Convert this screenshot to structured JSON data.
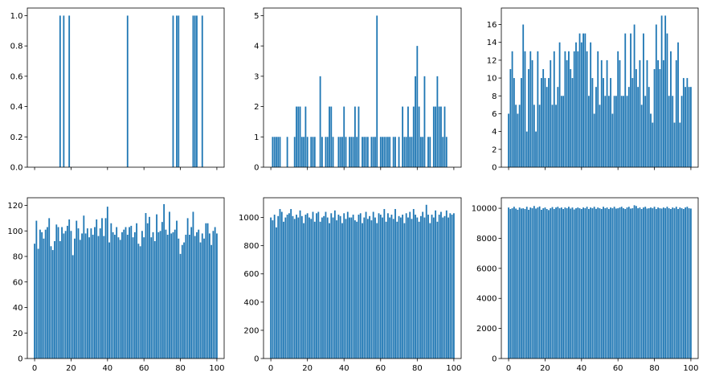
{
  "chart_data": [
    {
      "type": "bar",
      "color": "#1f77b4",
      "grid": false,
      "xlim": [
        -4,
        104
      ],
      "ylim": [
        0,
        1.05
      ],
      "x_ticks": [
        0,
        20,
        40,
        60,
        80,
        100
      ],
      "x_tick_labels": [],
      "y_ticks": [
        0,
        0.2,
        0.4,
        0.6,
        0.8,
        1.0
      ],
      "y_tick_labels": [
        "0.0",
        "0.2",
        "0.4",
        "0.6",
        "0.8",
        "1.0"
      ],
      "x": [
        14,
        16,
        19,
        51,
        76,
        78,
        79,
        87,
        88,
        89,
        92
      ],
      "values": [
        1,
        1,
        1,
        1,
        1,
        1,
        1,
        1,
        1,
        1,
        1
      ]
    },
    {
      "type": "bar",
      "color": "#1f77b4",
      "grid": false,
      "xlim": [
        -4,
        104
      ],
      "ylim": [
        0,
        5.25
      ],
      "x_ticks": [
        0,
        20,
        40,
        60,
        80,
        100
      ],
      "x_tick_labels": [],
      "y_ticks": [
        0,
        1,
        2,
        3,
        4,
        5
      ],
      "y_tick_labels": [
        "0",
        "1",
        "2",
        "3",
        "4",
        "5"
      ],
      "x": [
        1,
        2,
        3,
        4,
        5,
        9,
        13,
        14,
        15,
        16,
        17,
        18,
        19,
        20,
        22,
        23,
        24,
        27,
        28,
        30,
        31,
        32,
        33,
        34,
        37,
        38,
        39,
        40,
        41,
        43,
        44,
        45,
        46,
        47,
        48,
        50,
        51,
        52,
        53,
        55,
        56,
        57,
        58,
        60,
        61,
        62,
        63,
        64,
        65,
        67,
        68,
        70,
        72,
        73,
        74,
        75,
        76,
        77,
        78,
        79,
        80,
        81,
        82,
        83,
        84,
        86,
        87,
        89,
        90,
        91,
        92,
        93,
        94,
        95,
        96
      ],
      "values": [
        1,
        1,
        1,
        1,
        1,
        1,
        1,
        2,
        2,
        2,
        1,
        1,
        2,
        1,
        1,
        1,
        1,
        3,
        1,
        1,
        1,
        2,
        2,
        1,
        1,
        1,
        1,
        2,
        1,
        1,
        1,
        1,
        2,
        1,
        2,
        1,
        1,
        1,
        1,
        1,
        1,
        1,
        5,
        1,
        1,
        1,
        1,
        1,
        1,
        1,
        1,
        1,
        2,
        1,
        1,
        2,
        1,
        1,
        2,
        3,
        4,
        2,
        1,
        1,
        3,
        1,
        1,
        2,
        2,
        3,
        2,
        2,
        1,
        2,
        1
      ]
    },
    {
      "type": "bar",
      "color": "#1f77b4",
      "grid": false,
      "xlim": [
        -4,
        104
      ],
      "ylim": [
        0,
        17.85
      ],
      "x_ticks": [
        0,
        20,
        40,
        60,
        80,
        100
      ],
      "x_tick_labels": [],
      "y_ticks": [
        0,
        2,
        4,
        6,
        8,
        10,
        12,
        14,
        16
      ],
      "y_tick_labels": [
        "0",
        "2",
        "4",
        "6",
        "8",
        "10",
        "12",
        "14",
        "16"
      ],
      "x": [
        0,
        1,
        2,
        3,
        4,
        5,
        6,
        7,
        8,
        9,
        10,
        11,
        12,
        13,
        14,
        15,
        16,
        17,
        18,
        19,
        20,
        21,
        22,
        23,
        24,
        25,
        26,
        27,
        28,
        29,
        30,
        31,
        32,
        33,
        34,
        35,
        36,
        37,
        38,
        39,
        40,
        41,
        42,
        43,
        44,
        45,
        46,
        47,
        48,
        49,
        50,
        51,
        52,
        53,
        54,
        55,
        56,
        57,
        58,
        59,
        60,
        61,
        62,
        63,
        64,
        65,
        66,
        67,
        68,
        69,
        70,
        71,
        72,
        73,
        74,
        75,
        76,
        77,
        78,
        79,
        80,
        81,
        82,
        83,
        84,
        85,
        86,
        87,
        88,
        89,
        90,
        91,
        92,
        93,
        94,
        95,
        96,
        97,
        98,
        99,
        100
      ],
      "values": [
        6,
        11,
        13,
        10,
        7,
        6,
        7,
        10,
        16,
        13,
        4,
        11,
        13,
        12,
        7,
        4,
        13,
        7,
        10,
        11,
        10,
        9,
        10,
        12,
        7,
        13,
        7,
        9,
        14,
        8,
        8,
        13,
        12,
        13,
        11,
        10,
        13,
        14,
        13,
        15,
        14,
        15,
        15,
        13,
        8,
        14,
        10,
        6,
        9,
        13,
        7,
        12,
        10,
        8,
        12,
        8,
        10,
        6,
        8,
        8,
        13,
        12,
        8,
        8,
        15,
        8,
        9,
        15,
        10,
        16,
        11,
        9,
        12,
        7,
        15,
        8,
        12,
        9,
        6,
        5,
        11,
        16,
        12,
        11,
        17,
        12,
        17,
        15,
        8,
        13,
        8,
        5,
        12,
        14,
        5,
        8,
        10,
        9,
        10,
        9,
        9
      ]
    },
    {
      "type": "bar",
      "color": "#1f77b4",
      "grid": false,
      "xlim": [
        -4,
        104
      ],
      "ylim": [
        0,
        126
      ],
      "x_ticks": [
        0,
        20,
        40,
        60,
        80,
        100
      ],
      "x_tick_labels": [
        "0",
        "20",
        "40",
        "60",
        "80",
        "100"
      ],
      "y_ticks": [
        0,
        20,
        40,
        60,
        80,
        100,
        120
      ],
      "y_tick_labels": [
        "0",
        "20",
        "40",
        "60",
        "80",
        "100",
        "120"
      ],
      "x": [
        0,
        1,
        2,
        3,
        4,
        5,
        6,
        7,
        8,
        9,
        10,
        11,
        12,
        13,
        14,
        15,
        16,
        17,
        18,
        19,
        20,
        21,
        22,
        23,
        24,
        25,
        26,
        27,
        28,
        29,
        30,
        31,
        32,
        33,
        34,
        35,
        36,
        37,
        38,
        39,
        40,
        41,
        42,
        43,
        44,
        45,
        46,
        47,
        48,
        49,
        50,
        51,
        52,
        53,
        54,
        55,
        56,
        57,
        58,
        59,
        60,
        61,
        62,
        63,
        64,
        65,
        66,
        67,
        68,
        69,
        70,
        71,
        72,
        73,
        74,
        75,
        76,
        77,
        78,
        79,
        80,
        81,
        82,
        83,
        84,
        85,
        86,
        87,
        88,
        89,
        90,
        91,
        92,
        93,
        94,
        95,
        96,
        97,
        98,
        99,
        100
      ],
      "values": [
        90,
        108,
        86,
        101,
        99,
        94,
        101,
        103,
        110,
        88,
        85,
        92,
        105,
        103,
        92,
        103,
        98,
        100,
        104,
        109,
        100,
        81,
        94,
        108,
        102,
        93,
        98,
        112,
        98,
        102,
        95,
        102,
        97,
        103,
        109,
        96,
        102,
        110,
        96,
        110,
        119,
        91,
        106,
        99,
        97,
        103,
        95,
        93,
        99,
        101,
        103,
        97,
        103,
        104,
        95,
        99,
        106,
        90,
        88,
        100,
        95,
        114,
        106,
        111,
        95,
        99,
        92,
        113,
        99,
        100,
        107,
        121,
        101,
        97,
        115,
        98,
        99,
        101,
        108,
        94,
        82,
        89,
        91,
        97,
        110,
        97,
        103,
        115,
        96,
        99,
        101,
        91,
        98,
        94,
        106,
        106,
        98,
        89,
        100,
        103,
        98
      ]
    },
    {
      "type": "bar",
      "color": "#1f77b4",
      "grid": false,
      "xlim": [
        -4,
        104
      ],
      "ylim": [
        0,
        1140
      ],
      "x_ticks": [
        0,
        20,
        40,
        60,
        80,
        100
      ],
      "x_tick_labels": [
        "0",
        "20",
        "40",
        "60",
        "80",
        "100"
      ],
      "y_ticks": [
        0,
        200,
        400,
        600,
        800,
        1000
      ],
      "y_tick_labels": [
        "0",
        "200",
        "400",
        "600",
        "800",
        "1000"
      ],
      "x": [
        0,
        1,
        2,
        3,
        4,
        5,
        6,
        7,
        8,
        9,
        10,
        11,
        12,
        13,
        14,
        15,
        16,
        17,
        18,
        19,
        20,
        21,
        22,
        23,
        24,
        25,
        26,
        27,
        28,
        29,
        30,
        31,
        32,
        33,
        34,
        35,
        36,
        37,
        38,
        39,
        40,
        41,
        42,
        43,
        44,
        45,
        46,
        47,
        48,
        49,
        50,
        51,
        52,
        53,
        54,
        55,
        56,
        57,
        58,
        59,
        60,
        61,
        62,
        63,
        64,
        65,
        66,
        67,
        68,
        69,
        70,
        71,
        72,
        73,
        74,
        75,
        76,
        77,
        78,
        79,
        80,
        81,
        82,
        83,
        84,
        85,
        86,
        87,
        88,
        89,
        90,
        91,
        92,
        93,
        94,
        95,
        96,
        97,
        98,
        99,
        100
      ],
      "values": [
        1000,
        980,
        1020,
        930,
        1010,
        1060,
        1040,
        970,
        1000,
        1020,
        1030,
        1060,
        1010,
        990,
        1020,
        1000,
        1050,
        1010,
        960,
        1020,
        1030,
        1000,
        990,
        1040,
        970,
        1030,
        1040,
        970,
        1000,
        1010,
        1040,
        1000,
        960,
        1030,
        1000,
        1050,
        980,
        1020,
        1010,
        960,
        1030,
        990,
        1040,
        1000,
        1000,
        1020,
        980,
        970,
        1020,
        1030,
        960,
        1000,
        1040,
        990,
        1010,
        980,
        1040,
        1000,
        960,
        1030,
        1020,
        1000,
        1060,
        970,
        1030,
        1000,
        1020,
        990,
        1060,
        970,
        1010,
        1000,
        1020,
        960,
        1030,
        1000,
        1040,
        990,
        1060,
        1020,
        1000,
        970,
        1010,
        1040,
        1000,
        1090,
        1020,
        960,
        1020,
        1000,
        1050,
        970,
        1020,
        1040,
        1000,
        1010,
        1050,
        1000,
        1030,
        1020,
        1030
      ]
    },
    {
      "type": "bar",
      "color": "#1f77b4",
      "grid": false,
      "xlim": [
        -4,
        104
      ],
      "ylim": [
        0,
        10700
      ],
      "x_ticks": [
        0,
        20,
        40,
        60,
        80,
        100
      ],
      "x_tick_labels": [
        "0",
        "20",
        "40",
        "60",
        "80",
        "100"
      ],
      "y_ticks": [
        0,
        2000,
        4000,
        6000,
        8000,
        10000
      ],
      "y_tick_labels": [
        "0",
        "2000",
        "4000",
        "6000",
        "8000",
        "10000"
      ],
      "x": [
        0,
        1,
        2,
        3,
        4,
        5,
        6,
        7,
        8,
        9,
        10,
        11,
        12,
        13,
        14,
        15,
        16,
        17,
        18,
        19,
        20,
        21,
        22,
        23,
        24,
        25,
        26,
        27,
        28,
        29,
        30,
        31,
        32,
        33,
        34,
        35,
        36,
        37,
        38,
        39,
        40,
        41,
        42,
        43,
        44,
        45,
        46,
        47,
        48,
        49,
        50,
        51,
        52,
        53,
        54,
        55,
        56,
        57,
        58,
        59,
        60,
        61,
        62,
        63,
        64,
        65,
        66,
        67,
        68,
        69,
        70,
        71,
        72,
        73,
        74,
        75,
        76,
        77,
        78,
        79,
        80,
        81,
        82,
        83,
        84,
        85,
        86,
        87,
        88,
        89,
        90,
        91,
        92,
        93,
        94,
        95,
        96,
        97,
        98,
        99,
        100
      ],
      "values": [
        10050,
        9950,
        10000,
        10100,
        9980,
        9900,
        10050,
        9980,
        10000,
        9950,
        10100,
        9900,
        10050,
        10000,
        10150,
        9980,
        10050,
        10120,
        9900,
        10000,
        10050,
        9950,
        9880,
        10000,
        10080,
        9950,
        10050,
        10100,
        10000,
        10050,
        9950,
        10050,
        10000,
        10100,
        9980,
        10050,
        9920,
        10000,
        10050,
        10000,
        9950,
        10050,
        10000,
        10100,
        9950,
        10050,
        10000,
        10100,
        9960,
        10050,
        10000,
        9950,
        10100,
        10000,
        10050,
        9950,
        10050,
        10000,
        10100,
        9980,
        10000,
        10050,
        10100,
        10000,
        9950,
        10050,
        10100,
        9980,
        10000,
        10200,
        10150,
        10000,
        10050,
        9950,
        10050,
        10100,
        9980,
        10000,
        10050,
        10000,
        10100,
        9950,
        10050,
        10000,
        9980,
        10050,
        10000,
        10100,
        10000,
        9950,
        10050,
        10000,
        10100,
        9950,
        10050,
        10000,
        9950,
        10050,
        10100,
        10000,
        9980
      ]
    }
  ]
}
